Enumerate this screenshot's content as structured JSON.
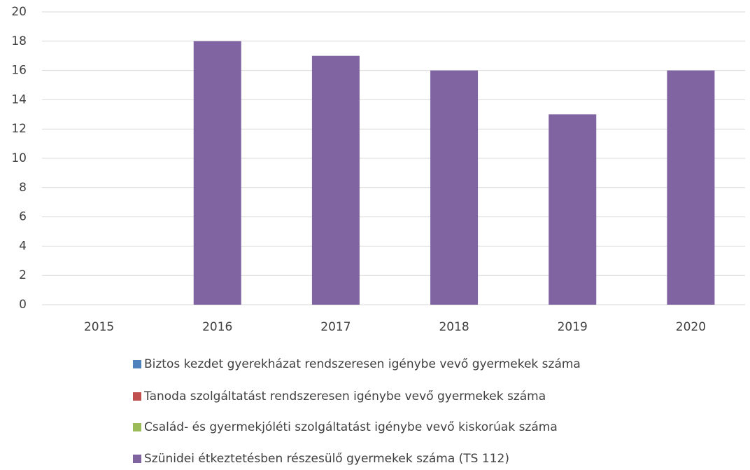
{
  "chart_data": {
    "type": "bar",
    "categories": [
      "2015",
      "2016",
      "2017",
      "2018",
      "2019",
      "2020"
    ],
    "series": [
      {
        "name": "Biztos kezdet gyerekházat rendszeresen igénybe vevő gyermekek száma",
        "color": "#4f81bd",
        "values": [
          null,
          null,
          null,
          null,
          null,
          null
        ]
      },
      {
        "name": "Tanoda szolgáltatást rendszeresen igénybe vevő gyermekek száma",
        "color": "#c0504d",
        "values": [
          null,
          null,
          null,
          null,
          null,
          null
        ]
      },
      {
        "name": "Család- és gyermekjóléti szolgáltatást igénybe vevő kiskorúak száma",
        "color": "#9bbb59",
        "values": [
          null,
          null,
          null,
          null,
          null,
          null
        ]
      },
      {
        "name": "Szünidei étkeztetésben részesülő gyermekek száma (TS 112)",
        "color": "#8064a2",
        "values": [
          0,
          18,
          17,
          16,
          13,
          16
        ]
      }
    ],
    "ylim": [
      0,
      20
    ],
    "yticks": [
      0,
      2,
      4,
      6,
      8,
      10,
      12,
      14,
      16,
      18,
      20
    ],
    "grid": true,
    "legend": "bottom"
  }
}
